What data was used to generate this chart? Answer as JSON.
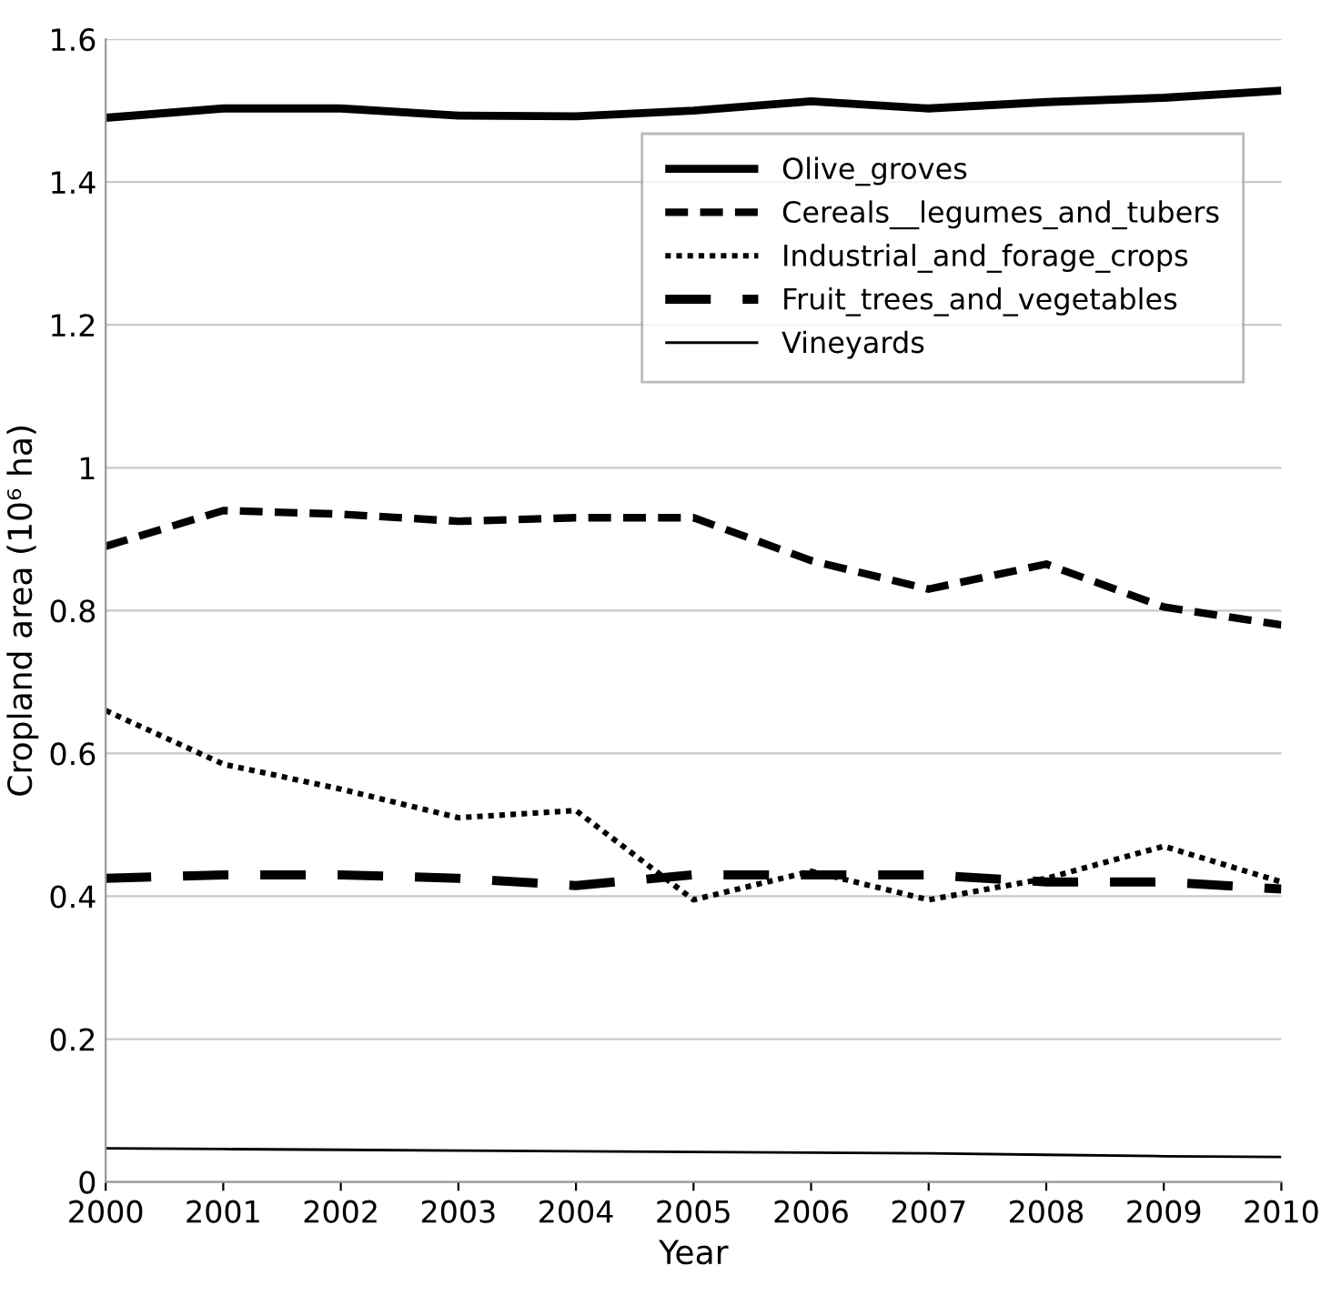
{
  "chart_data": {
    "type": "line",
    "xlabel": "Year",
    "ylabel": "Cropland area (10⁶ ha)",
    "x": [
      2000,
      2001,
      2002,
      2003,
      2004,
      2005,
      2006,
      2007,
      2008,
      2009,
      2010
    ],
    "xlim": [
      2000,
      2010
    ],
    "xticks": [
      2000,
      2001,
      2002,
      2003,
      2004,
      2005,
      2006,
      2007,
      2008,
      2009,
      2010
    ],
    "ylim": [
      0,
      1.6
    ],
    "yticks": [
      0,
      0.2,
      0.4,
      0.6,
      0.8,
      1,
      1.2,
      1.4,
      1.6
    ],
    "grid": "y",
    "legend": "top right",
    "marker": "none",
    "series": [
      {
        "name": "Olive_groves",
        "color": "#000000",
        "line_style": "solid",
        "values": [
          1.49,
          1.503,
          1.503,
          1.493,
          1.492,
          1.5,
          1.513,
          1.503,
          1.512,
          1.518,
          1.528
        ]
      },
      {
        "name": "Cereals__legumes_and_tubers",
        "color": "#000000",
        "line_style": "dashed",
        "values": [
          0.89,
          0.94,
          0.935,
          0.925,
          0.93,
          0.93,
          0.87,
          0.83,
          0.865,
          0.805,
          0.78
        ]
      },
      {
        "name": "Industrial_and_forage_crops",
        "color": "#000000",
        "line_style": "dotted",
        "values": [
          0.66,
          0.585,
          0.55,
          0.51,
          0.52,
          0.395,
          0.435,
          0.395,
          0.425,
          0.47,
          0.42
        ]
      },
      {
        "name": "Fruit_trees_and_vegetables",
        "color": "#000000",
        "line_style": "dashed",
        "values": [
          0.425,
          0.43,
          0.43,
          0.425,
          0.415,
          0.43,
          0.43,
          0.43,
          0.42,
          0.42,
          0.41
        ]
      },
      {
        "name": "Vineyards",
        "color": "#000000",
        "line_style": "solid",
        "values": [
          0.047,
          0.046,
          0.045,
          0.044,
          0.043,
          0.042,
          0.041,
          0.04,
          0.038,
          0.036,
          0.035
        ]
      }
    ]
  }
}
